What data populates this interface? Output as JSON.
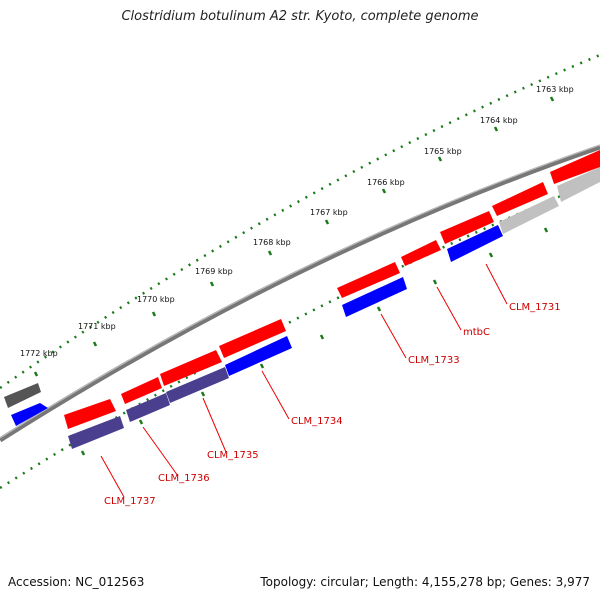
{
  "title": "Clostridium botulinum A2 str. Kyoto, complete genome",
  "accession": "Accession: NC_012563",
  "topology": "Topology: circular; Length: 4,155,278 bp; Genes: 3,977",
  "kbp_ticks": [
    "1763 kbp",
    "1764 kbp",
    "1765 kbp",
    "1766 kbp",
    "1767 kbp",
    "1768 kbp",
    "1769 kbp",
    "1770 kbp",
    "1771 kbp",
    "1772 kbp"
  ],
  "gene_labels": [
    "CLM_1731",
    "mtbC",
    "CLM_1733",
    "CLM_1734",
    "CLM_1735",
    "CLM_1736",
    "CLM_1737"
  ],
  "colors": {
    "forward_cds": "#ff0000",
    "reverse_cds": "#0000ff",
    "reverse_dark": "#4a3f8f",
    "grey_feature": "#999999",
    "dark_feature": "#555555",
    "backbone": "#777777",
    "tick_green": "#1a7a1a",
    "label_red": "#cc0000"
  }
}
